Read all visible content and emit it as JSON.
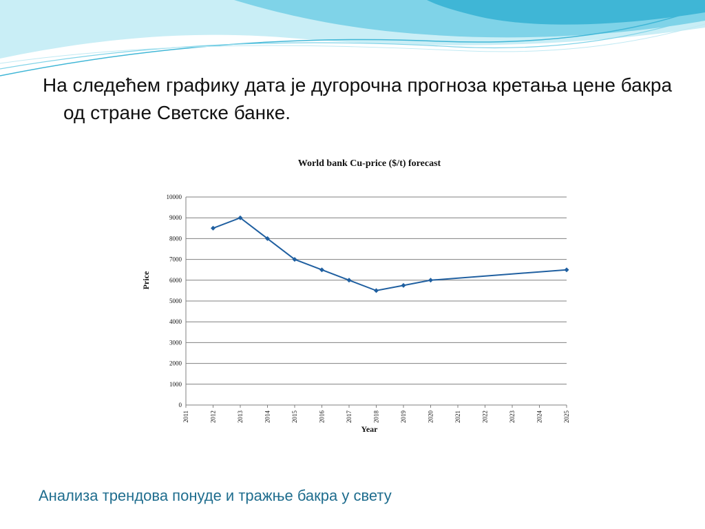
{
  "slide": {
    "body_text": "На следећем графику дата је дугорочна прогноза кретања цене бакра од стране Светске банке.",
    "footer_text": "Анализа трендова понуде и тражње бакра у свету"
  },
  "colors": {
    "series": "#1f5fa0",
    "grid": "#7f7f7f",
    "footer": "#1f6d8e",
    "wave_dark": "#3fb6d6",
    "wave_light": "#bfe9f3"
  },
  "chart_data": {
    "type": "line",
    "title": "World bank Cu-price ($/t) forecast",
    "xlabel": "Year",
    "ylabel": "Price",
    "x_ticks": [
      2011,
      2012,
      2013,
      2014,
      2015,
      2016,
      2017,
      2018,
      2019,
      2020,
      2021,
      2022,
      2023,
      2024,
      2025
    ],
    "y_ticks": [
      0,
      1000,
      2000,
      3000,
      4000,
      5000,
      6000,
      7000,
      8000,
      9000,
      10000
    ],
    "ylim": [
      0,
      10000
    ],
    "xlim": [
      2011,
      2025
    ],
    "grid": "horizontal",
    "legend": "none",
    "series": [
      {
        "x": [
          2012,
          2013,
          2014,
          2015,
          2016,
          2017,
          2018,
          2019,
          2020,
          2025
        ],
        "y": [
          8500,
          9000,
          8000,
          7000,
          6500,
          6000,
          5500,
          5750,
          6000,
          6500
        ]
      }
    ]
  }
}
